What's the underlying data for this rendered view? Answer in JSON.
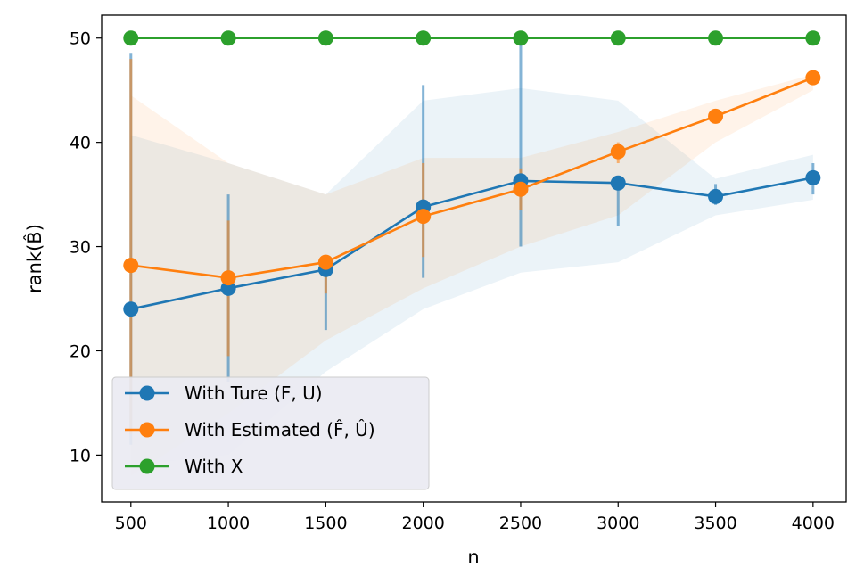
{
  "chart_data": {
    "type": "line",
    "title": "",
    "xlabel": "n",
    "ylabel": "rank(B̂)",
    "x": [
      500,
      1000,
      1500,
      2000,
      2500,
      3000,
      3500,
      4000
    ],
    "xticks": [
      "500",
      "1000",
      "1500",
      "2000",
      "2500",
      "3000",
      "3500",
      "4000"
    ],
    "yticks": [
      "10",
      "20",
      "30",
      "40",
      "50"
    ],
    "xlim": [
      350,
      4170
    ],
    "ylim": [
      5.5,
      52.2
    ],
    "grid": false,
    "legend_position": "lower-left",
    "series": [
      {
        "name": "With Ture (F, U)",
        "color": "#1f77b4",
        "values": [
          24.0,
          26.0,
          27.8,
          33.8,
          36.3,
          36.1,
          34.8,
          36.6
        ],
        "error_bars": [
          [
            11.0,
            48.5
          ],
          [
            17.0,
            35.0
          ],
          [
            22.0,
            28.0
          ],
          [
            27.0,
            45.5
          ],
          [
            30.0,
            50.0
          ],
          [
            32.0,
            36.0
          ],
          [
            34.0,
            36.0
          ],
          [
            35.0,
            38.0
          ]
        ],
        "band": [
          [
            9.0,
            40.7
          ],
          [
            10.0,
            38.0
          ],
          [
            18.0,
            35.0
          ],
          [
            24.0,
            44.0
          ],
          [
            27.5,
            45.2
          ],
          [
            28.5,
            44.0
          ],
          [
            33.0,
            36.5
          ],
          [
            34.5,
            38.8
          ]
        ]
      },
      {
        "name": "With Estimated (F̂, Û)",
        "color": "#ff7f0e",
        "values": [
          28.2,
          27.0,
          28.5,
          32.9,
          35.5,
          39.1,
          42.5,
          46.2
        ],
        "error_bars": [
          [
            12.0,
            48.0
          ],
          [
            19.5,
            32.5
          ],
          [
            25.5,
            29.0
          ],
          [
            29.0,
            38.0
          ],
          [
            33.5,
            37.5
          ],
          [
            38.0,
            40.0
          ],
          [
            42.0,
            43.0
          ],
          [
            45.5,
            46.8
          ]
        ],
        "band": [
          [
            8.0,
            44.5
          ],
          [
            14.0,
            38.0
          ],
          [
            21.0,
            35.0
          ],
          [
            26.0,
            38.5
          ],
          [
            30.0,
            38.5
          ],
          [
            33.0,
            41.0
          ],
          [
            40.0,
            44.0
          ],
          [
            45.0,
            46.5
          ]
        ]
      },
      {
        "name": "With X",
        "color": "#2ca02c",
        "values": [
          50,
          50,
          50,
          50,
          50,
          50,
          50,
          50
        ]
      }
    ]
  }
}
